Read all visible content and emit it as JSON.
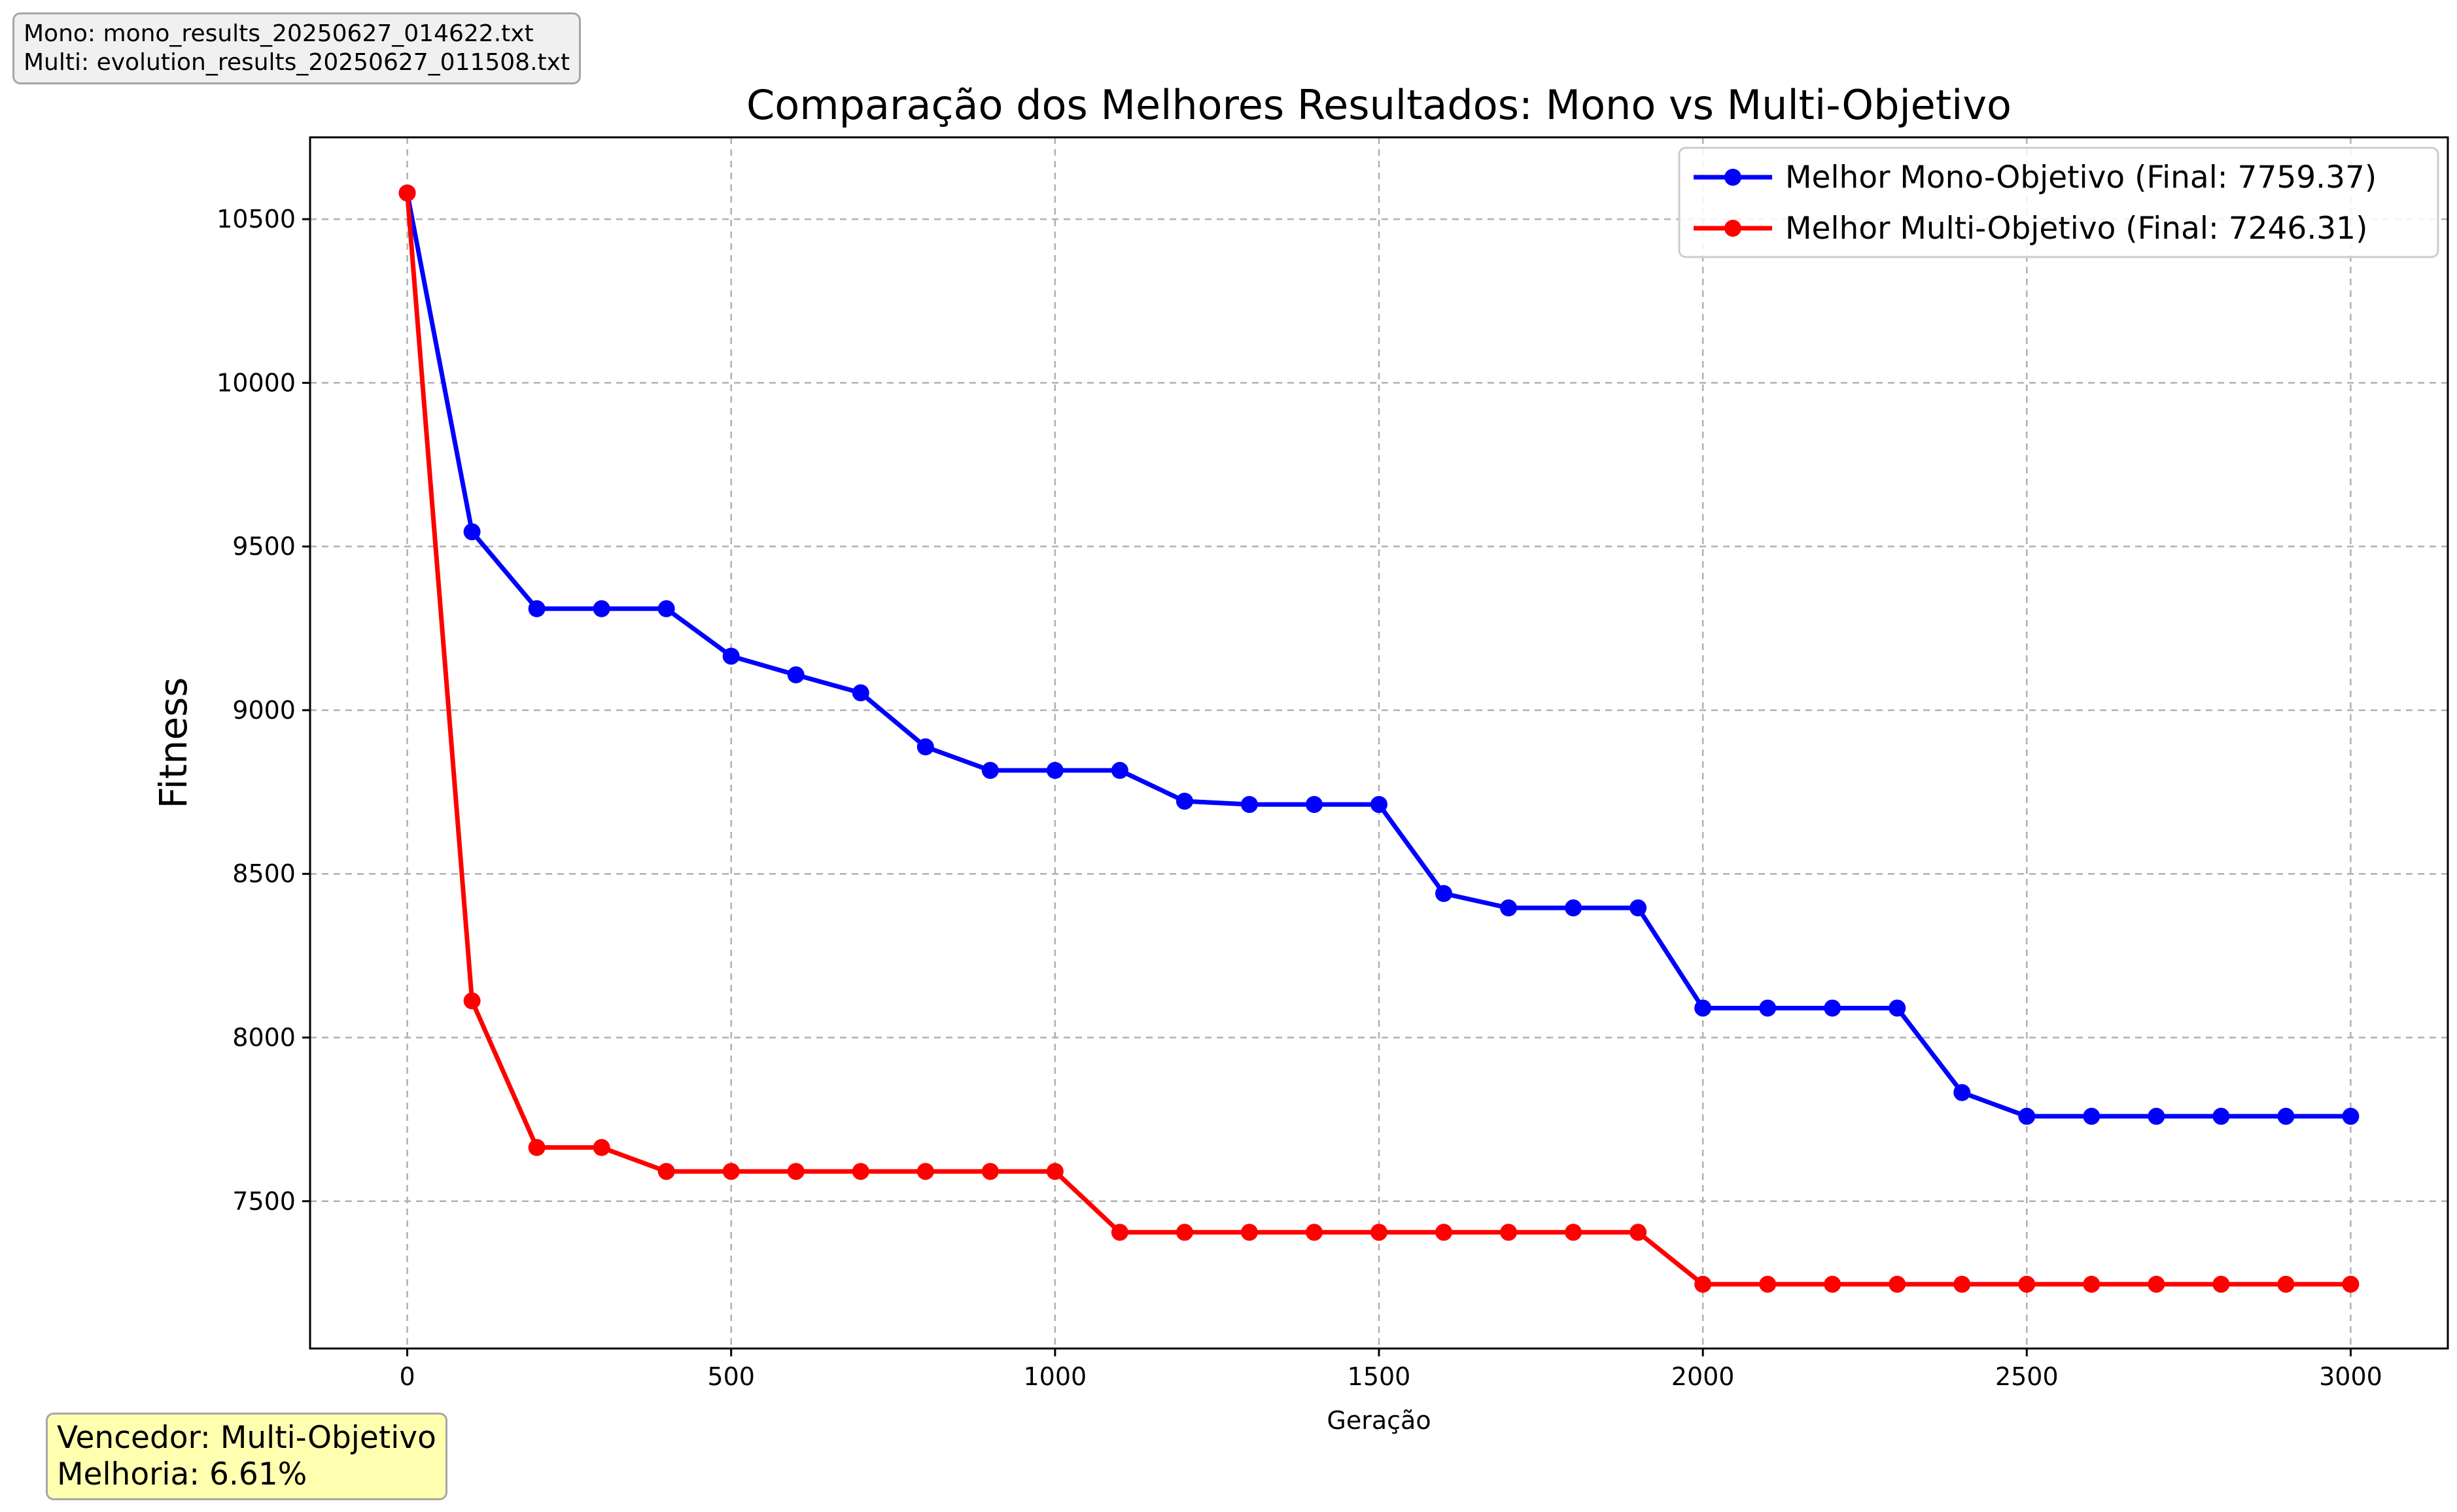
{
  "info_box": {
    "mono_line": "Mono: mono_results_20250627_014622.txt",
    "multi_line": "Multi: evolution_results_20250627_011508.txt"
  },
  "winner_box": {
    "winner_line": "Vencedor: Multi-Objetivo",
    "improvement_line": "Melhoria: 6.61%"
  },
  "chart_data": {
    "type": "line",
    "title": "Comparação dos Melhores Resultados: Mono vs Multi-Objetivo",
    "xlabel": "Geração",
    "ylabel": "Fitness",
    "xlim": [
      -150,
      3150
    ],
    "ylim": [
      7050,
      10750
    ],
    "xticks": [
      0,
      500,
      1000,
      1500,
      2000,
      2500,
      3000
    ],
    "yticks": [
      7500,
      8000,
      8500,
      9000,
      9500,
      10000,
      10500
    ],
    "grid": true,
    "legend_position": "top-right",
    "x": [
      0,
      100,
      200,
      300,
      400,
      500,
      600,
      700,
      800,
      900,
      1000,
      1100,
      1200,
      1300,
      1400,
      1500,
      1600,
      1700,
      1800,
      1900,
      2000,
      2100,
      2200,
      2300,
      2400,
      2500,
      2600,
      2700,
      2800,
      2900,
      3000
    ],
    "series": [
      {
        "name": "Melhor Mono-Objetivo (Final: 7759.37)",
        "color": "#0000ff",
        "values": [
          10580,
          9545,
          9310,
          9310,
          9310,
          9165,
          9108,
          9053,
          8888,
          8816,
          8816,
          8816,
          8722,
          8712,
          8712,
          8712,
          8440,
          8396,
          8396,
          8396,
          8090,
          8090,
          8090,
          8090,
          7832,
          7759.37,
          7759.37,
          7759.37,
          7759.37,
          7759.37,
          7759.37
        ]
      },
      {
        "name": "Melhor Multi-Objetivo (Final: 7246.31)",
        "color": "#ff0000",
        "values": [
          10580,
          8112,
          7664,
          7664,
          7591,
          7591,
          7591,
          7591,
          7591,
          7591,
          7591,
          7405,
          7405,
          7405,
          7405,
          7405,
          7405,
          7405,
          7405,
          7405,
          7246.31,
          7246.31,
          7246.31,
          7246.31,
          7246.31,
          7246.31,
          7246.31,
          7246.31,
          7246.31,
          7246.31,
          7246.31
        ]
      }
    ]
  }
}
